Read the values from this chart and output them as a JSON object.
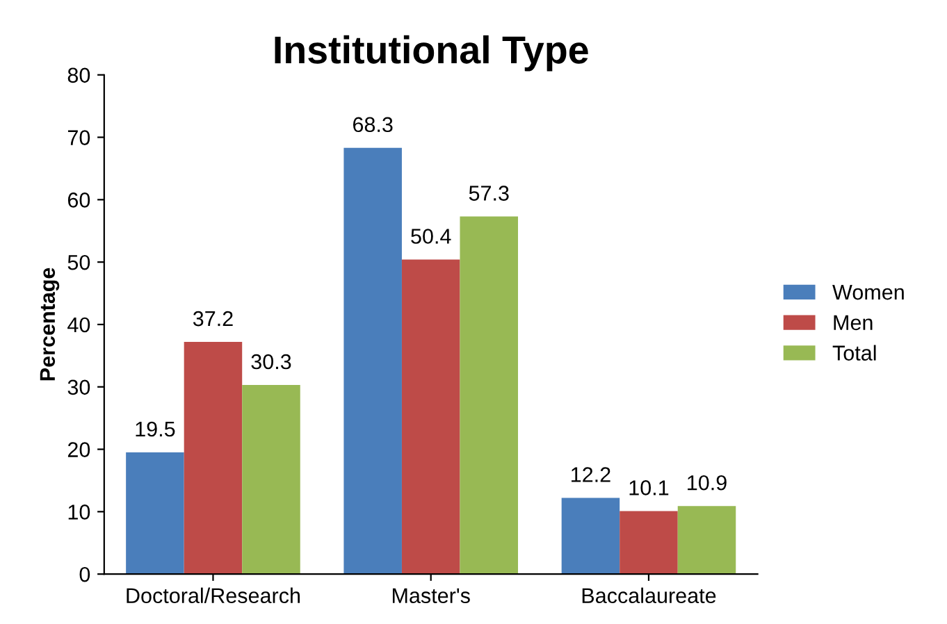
{
  "chart_data": {
    "type": "bar",
    "title": "Institutional Type",
    "ylabel": "Percentage",
    "categories": [
      "Doctoral/Research",
      "Master's",
      "Baccalaureate"
    ],
    "series": [
      {
        "name": "Women",
        "color": "#4a7ebb",
        "values": [
          19.5,
          68.3,
          12.2
        ]
      },
      {
        "name": "Men",
        "color": "#be4b48",
        "values": [
          37.2,
          50.4,
          10.1
        ]
      },
      {
        "name": "Total",
        "color": "#98b954",
        "values": [
          30.3,
          57.3,
          10.9
        ]
      }
    ],
    "ylim": [
      0,
      80
    ],
    "yticks": [
      0,
      10,
      20,
      30,
      40,
      50,
      60,
      70,
      80
    ],
    "grid": false,
    "legend": "right",
    "data_labels": true
  }
}
